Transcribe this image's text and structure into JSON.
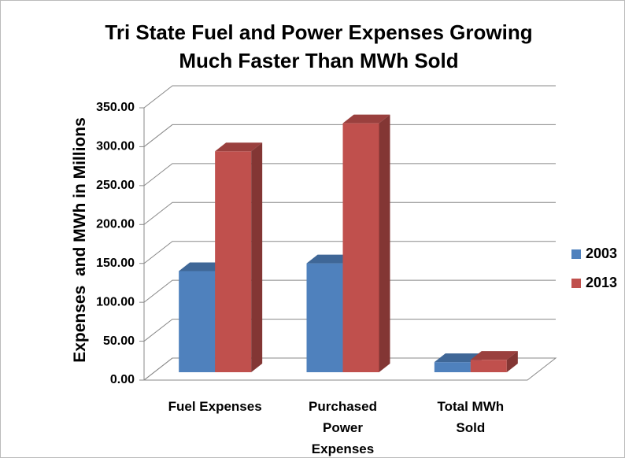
{
  "chart_data": {
    "type": "bar3d",
    "title": "Tri State Fuel and Power Expenses Growing Much Faster Than MWh Sold",
    "y_label": "Expenses  and MWh in Millions",
    "categories": [
      "Fuel Expenses",
      "Purchased Power Expenses",
      "Total MWh Sold"
    ],
    "series": [
      {
        "name": "2003",
        "color": "#4f81bd",
        "values": [
          130,
          140,
          13
        ]
      },
      {
        "name": "2013",
        "color": "#c0504d",
        "values": [
          284,
          320,
          16
        ]
      }
    ],
    "ylim": [
      0,
      350
    ],
    "yticks": [
      {
        "value": 0,
        "label": "0.00"
      },
      {
        "value": 50,
        "label": "50.00"
      },
      {
        "value": 100,
        "label": "100.00"
      },
      {
        "value": 150,
        "label": "150.00"
      },
      {
        "value": 200,
        "label": "200.00"
      },
      {
        "value": 250,
        "label": "250.00"
      },
      {
        "value": 300,
        "label": "300.00"
      },
      {
        "value": 350,
        "label": "350.00"
      }
    ],
    "grid": true,
    "legend": "right"
  }
}
